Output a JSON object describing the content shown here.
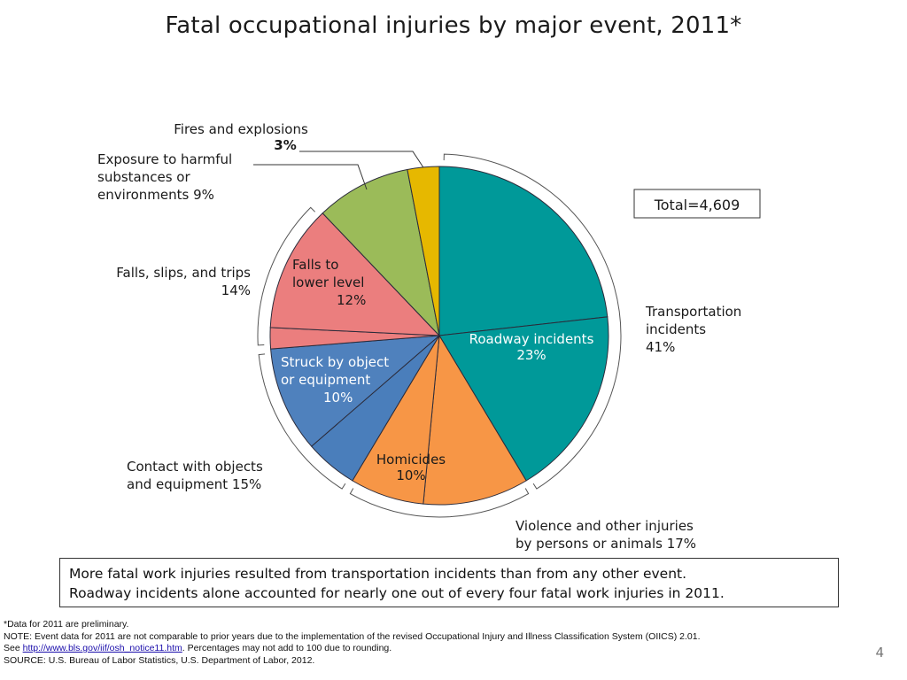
{
  "title": "Fatal occupational injuries by major event, 2011*",
  "total_label": "Total=4,609",
  "summary": {
    "line1": "More fatal work injuries resulted from transportation incidents than from any other event.",
    "line2": "Roadway incidents alone accounted for nearly one out of every four fatal work injuries in 2011."
  },
  "notes": {
    "line1": "*Data for 2011 are preliminary.",
    "line2": "NOTE:  Event data for 2011 are not comparable to prior years due to the implementation of the revised Occupational Injury and Illness Classification System (OIICS) 2.01.",
    "line3_prefix": "See ",
    "line3_link": "http://www.bls.gov/iif/osh_notice11.htm",
    "line3_suffix": ". Percentages may not add to 100 due to rounding.",
    "line4": "SOURCE: U.S. Bureau of Labor Statistics, U.S. Department of Labor, 2012."
  },
  "page_number": "4",
  "chart_data": {
    "type": "pie",
    "title": "Fatal occupational injuries by major event, 2011*",
    "total": 4609,
    "start_angle": "12 o'clock",
    "direction": "clockwise",
    "slices": [
      {
        "name": "Roadway incidents",
        "value": 23,
        "color": "#009999",
        "label_lines": [
          "Roadway incidents",
          "23%"
        ]
      },
      {
        "name": "Other transportation incidents",
        "value": 18,
        "color": "#009999",
        "label_lines": []
      },
      {
        "name": "Homicides",
        "value": 10,
        "color": "#F79646",
        "label_lines": [
          "Homicides",
          "10%"
        ]
      },
      {
        "name": "Other violence and injuries by persons or animals",
        "value": 7,
        "color": "#F79646",
        "label_lines": []
      },
      {
        "name": "Other contact with objects and equipment",
        "value": 5,
        "color": "#4A7EBB",
        "label_lines": []
      },
      {
        "name": "Struck by object or equipment",
        "value": 10,
        "color": "#4F81BD",
        "label_lines": [
          "Struck by object",
          "or equipment",
          "10%"
        ]
      },
      {
        "name": "Other falls, slips, and trips",
        "value": 2,
        "color": "#EB7E7E",
        "label_lines": []
      },
      {
        "name": "Falls to lower level",
        "value": 12,
        "color": "#EB7E7E",
        "label_lines": [
          "Falls to",
          "lower level",
          "12%"
        ]
      },
      {
        "name": "Exposure to harmful substances or environments",
        "value": 9,
        "color": "#9BBB59",
        "label_lines": []
      },
      {
        "name": "Fires and explosions",
        "value": 3,
        "color": "#E6B800",
        "label_lines": []
      }
    ],
    "groups": [
      {
        "name": "Transportation incidents",
        "percent": "41%",
        "lines": [
          "Transportation",
          "incidents",
          "41%"
        ]
      },
      {
        "name": "Violence and other injuries by persons or animals",
        "percent": "17%",
        "lines": [
          "Violence and other injuries",
          "by persons or animals 17%"
        ]
      },
      {
        "name": "Contact with objects and equipment",
        "percent": "15%",
        "lines": [
          "Contact with objects",
          "and equipment   15%"
        ]
      },
      {
        "name": "Falls, slips, and trips",
        "percent": "14%",
        "lines": [
          "Falls, slips, and trips",
          "14%"
        ]
      },
      {
        "name": "Exposure to harmful substances or environments",
        "percent": "9%",
        "lines": [
          "Exposure to harmful",
          "substances or",
          "environments   9%"
        ]
      },
      {
        "name": "Fires and explosions",
        "percent": "3%",
        "lines": [
          "Fires and explosions",
          "3%"
        ]
      }
    ]
  }
}
